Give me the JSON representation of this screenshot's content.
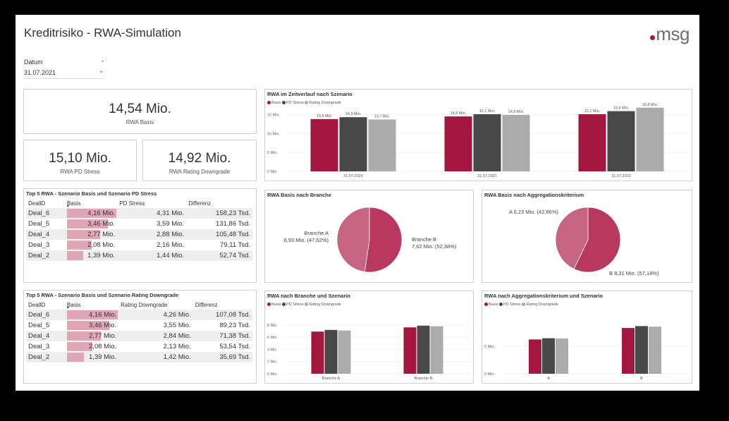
{
  "header": {
    "title": "Kreditrisiko - RWA-Simulation",
    "logo_text": "msg",
    "logo_dot_color": "#9b1b40"
  },
  "slicer": {
    "label": "Datum",
    "value": "31.07.2021"
  },
  "kpis": {
    "basis": {
      "value": "14,54 Mio.",
      "label": "RWA Basis"
    },
    "pd": {
      "value": "15,10 Mio.",
      "label": "RWA PD Stress"
    },
    "rating": {
      "value": "14,92 Mio.",
      "label": "RWA Rating Downgrade"
    }
  },
  "colors": {
    "basis": "#a3173f",
    "pd": "#484848",
    "rating": "#ababab",
    "pie_dark": "#b8385e",
    "pie_light": "#c56483",
    "bar_basis": "#e0a5b7"
  },
  "legend_labels": [
    "Basis",
    "PD Stress",
    "Rating Downgrade"
  ],
  "table_pd": {
    "title": "Top 5 RWA - Szenario Basis und Szenario PD Stress",
    "columns": [
      "DealID",
      "Basis",
      "PD Stress",
      "Differenz"
    ],
    "rows": [
      {
        "id": "Deal_6",
        "basis": "4,16 Mio.",
        "other": "4,31 Mio.",
        "diff": "158,23 Tsd.",
        "basis_num": 4.16
      },
      {
        "id": "Deal_5",
        "basis": "3,46 Mio.",
        "other": "3,59 Mio.",
        "diff": "131,86 Tsd.",
        "basis_num": 3.46
      },
      {
        "id": "Deal_4",
        "basis": "2,77 Mio.",
        "other": "2,88 Mio.",
        "diff": "105,48 Tsd.",
        "basis_num": 2.77
      },
      {
        "id": "Deal_3",
        "basis": "2,08 Mio.",
        "other": "2,16 Mio.",
        "diff": "79,11 Tsd.",
        "basis_num": 2.08
      },
      {
        "id": "Deal_2",
        "basis": "1,39 Mio.",
        "other": "1,44 Mio.",
        "diff": "52,74 Tsd.",
        "basis_num": 1.39
      }
    ]
  },
  "table_rating": {
    "title": "Top 5 RWA - Szenario Basis und Szenario Rating Downgrade",
    "columns": [
      "DealID",
      "Basis",
      "Rating Downgrade",
      "Differenz"
    ],
    "rows": [
      {
        "id": "Deal_6",
        "basis": "4,16 Mio.",
        "other": "4,26 Mio.",
        "diff": "107,08 Tsd.",
        "basis_num": 4.16
      },
      {
        "id": "Deal_5",
        "basis": "3,46 Mio.",
        "other": "3,55 Mio.",
        "diff": "89,23 Tsd.",
        "basis_num": 3.46
      },
      {
        "id": "Deal_4",
        "basis": "2,77 Mio.",
        "other": "2,84 Mio.",
        "diff": "71,38 Tsd.",
        "basis_num": 2.77
      },
      {
        "id": "Deal_3",
        "basis": "2,08 Mio.",
        "other": "2,13 Mio.",
        "diff": "53,54 Tsd.",
        "basis_num": 2.08
      },
      {
        "id": "Deal_2",
        "basis": "1,39 Mio.",
        "other": "1,42 Mio.",
        "diff": "35,69 Tsd.",
        "basis_num": 1.39
      }
    ]
  },
  "chart_data": [
    {
      "id": "zeitverlauf",
      "type": "bar",
      "title": "RWA im Zeitverlauf nach Szenario",
      "categories": [
        "31.07.2020",
        "31.07.2021",
        "31.07.2022"
      ],
      "series": [
        {
          "name": "Basis",
          "values": [
            13.8,
            14.5,
            15.1
          ],
          "labels": [
            "13,8 Mio.",
            "14,5 Mio.",
            "15,1 Mio."
          ]
        },
        {
          "name": "PD Stress",
          "values": [
            14.3,
            15.1,
            15.9
          ],
          "labels": [
            "14,3 Mio.",
            "15,1 Mio.",
            "15,9 Mio."
          ]
        },
        {
          "name": "Rating Downgrade",
          "values": [
            13.7,
            14.9,
            16.8
          ],
          "labels": [
            "13,7 Mio.",
            "14,9 Mio.",
            "16,8 Mio."
          ]
        }
      ],
      "yticks": [
        0,
        5,
        10,
        15
      ],
      "ytick_labels": [
        "0 Mio.",
        "5 Mio.",
        "10 Mio.",
        "15 Mio."
      ],
      "ylim": [
        0,
        17.5
      ]
    },
    {
      "id": "branche_pie",
      "type": "pie",
      "title": "RWA Basis nach Branche",
      "slices": [
        {
          "name": "Branche A",
          "value": 6.93,
          "label": "6,93 Mio. (47,62%)"
        },
        {
          "name": "Branche B",
          "value": 7.62,
          "label": "7,62 Mio. (52,38%)"
        }
      ]
    },
    {
      "id": "aggr_pie",
      "type": "pie",
      "title": "RWA Basis nach Aggregationskriterium",
      "slices": [
        {
          "name": "A",
          "value": 6.23,
          "label": "A 6,23 Mio. (42,86%)"
        },
        {
          "name": "B",
          "value": 8.31,
          "label": "B 8,31 Mio. (57,14%)"
        }
      ]
    },
    {
      "id": "branche_szen",
      "type": "bar",
      "title": "RWA nach Branche und Szenario",
      "categories": [
        "Branche A",
        "Branche B"
      ],
      "series": [
        {
          "name": "Basis",
          "values": [
            6.93,
            7.62
          ]
        },
        {
          "name": "PD Stress",
          "values": [
            7.2,
            7.9
          ]
        },
        {
          "name": "Rating Downgrade",
          "values": [
            7.1,
            7.8
          ]
        }
      ],
      "yticks": [
        0,
        2,
        4,
        6,
        8
      ],
      "ytick_labels": [
        "0 Mio.",
        "2 Mio.",
        "4 Mio.",
        "6 Mio.",
        "8 Mio."
      ],
      "ylim": [
        0,
        9.5
      ]
    },
    {
      "id": "aggr_szen",
      "type": "bar",
      "title": "RWA nach Aggregationskriterium und Szenario",
      "categories": [
        "A",
        "B"
      ],
      "series": [
        {
          "name": "Basis",
          "values": [
            6.23,
            8.31
          ]
        },
        {
          "name": "PD Stress",
          "values": [
            6.45,
            8.65
          ]
        },
        {
          "name": "Rating Downgrade",
          "values": [
            6.4,
            8.55
          ]
        }
      ],
      "yticks": [
        0,
        5
      ],
      "ytick_labels": [
        "0 Mio.",
        "5 Mio."
      ],
      "ylim": [
        0,
        10.5
      ]
    }
  ]
}
